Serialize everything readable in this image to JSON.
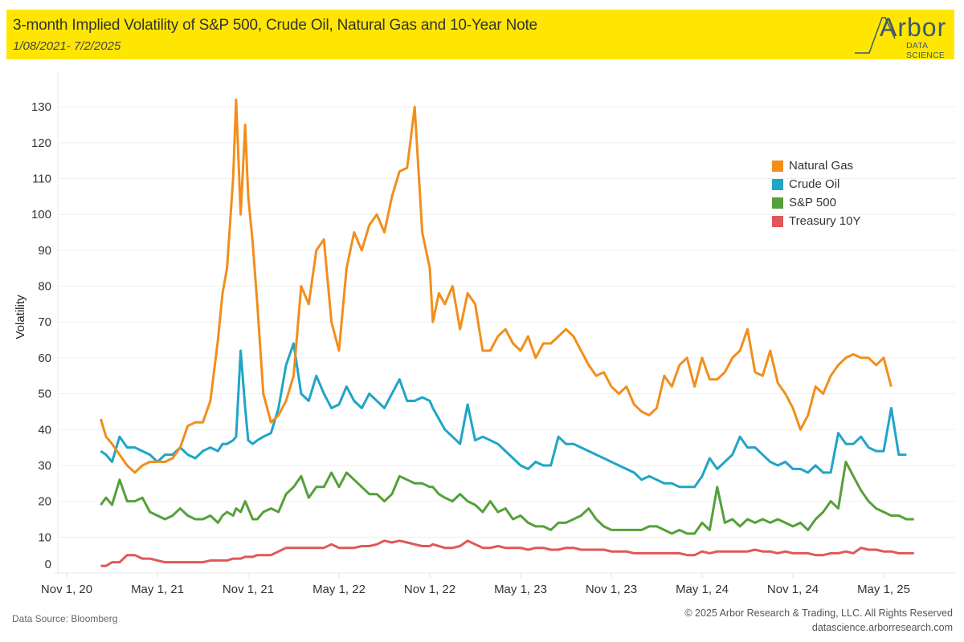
{
  "header": {
    "title": "3-month Implied Volatility of S&P 500, Crude Oil, Natural Gas and 10-Year Note",
    "subtitle": "1/08/2021- 7/2/2025",
    "logo_word": "Arbor",
    "logo_sub": "DATA SCIENCE"
  },
  "footer": {
    "source": "Data Source: Bloomberg",
    "copyright": "© 2025 Arbor Research & Trading, LLC. All Rights Reserved",
    "website": "datascience.arborresearch.com"
  },
  "chart_data": {
    "type": "line",
    "title": "3-month Implied Volatility of S&P 500, Crude Oil, Natural Gas and 10-Year Note",
    "subtitle": "1/08/2021- 7/2/2025",
    "xlabel": "",
    "ylabel": "Volatility",
    "ylim": [
      0,
      135
    ],
    "yticks": [
      0,
      10,
      20,
      30,
      40,
      50,
      60,
      70,
      80,
      90,
      100,
      110,
      120,
      130
    ],
    "xticks": [
      "Nov 1, 20",
      "May 1, 21",
      "Nov 1, 21",
      "May 1, 22",
      "Nov 1, 22",
      "May 1, 23",
      "Nov 1, 23",
      "May 1, 24",
      "Nov 1, 24",
      "May 1, 25"
    ],
    "x_unit": "months since Nov 1, 2020",
    "xlim": [
      -0.9,
      60.5
    ],
    "grid": "horizontal",
    "legend_position": "top-right",
    "colors": {
      "Natural Gas": "#f28e1c",
      "Crude Oil": "#1ea5c8",
      "S&P 500": "#55a03a",
      "Treasury 10Y": "#e05759"
    },
    "x": [
      2.25,
      2.6,
      3.0,
      3.5,
      4.0,
      4.5,
      5.0,
      5.5,
      6.0,
      6.5,
      7.0,
      7.5,
      8.0,
      8.5,
      9.0,
      9.5,
      10.0,
      10.3,
      10.6,
      11.0,
      11.2,
      11.5,
      11.8,
      12.0,
      12.3,
      12.6,
      13.0,
      13.5,
      14.0,
      14.5,
      15.0,
      15.5,
      16.0,
      16.5,
      17.0,
      17.5,
      18.0,
      18.5,
      19.0,
      19.5,
      20.0,
      20.5,
      21.0,
      21.5,
      22.0,
      22.5,
      23.0,
      23.5,
      24.0,
      24.2,
      24.6,
      25.0,
      25.5,
      26.0,
      26.5,
      27.0,
      27.5,
      28.0,
      28.5,
      29.0,
      29.5,
      30.0,
      30.5,
      31.0,
      31.5,
      32.0,
      32.5,
      33.0,
      33.5,
      34.0,
      34.5,
      35.0,
      35.5,
      36.0,
      36.5,
      37.0,
      37.5,
      38.0,
      38.5,
      39.0,
      39.5,
      40.0,
      40.5,
      41.0,
      41.5,
      42.0,
      42.5,
      43.0,
      43.5,
      44.0,
      44.5,
      45.0,
      45.5,
      46.0,
      46.5,
      47.0,
      47.5,
      48.0,
      48.5,
      49.0,
      49.5,
      50.0,
      50.5,
      51.0,
      51.5,
      52.0,
      52.5,
      53.0,
      53.5,
      54.0,
      54.5,
      55.0,
      55.5,
      56.0
    ],
    "series": [
      {
        "name": "Natural Gas",
        "values": [
          43,
          38,
          36,
          33,
          30,
          28,
          30,
          31,
          31,
          31,
          32,
          35,
          41,
          42,
          42,
          48,
          65,
          78,
          85,
          110,
          132,
          100,
          125,
          105,
          92,
          75,
          50,
          42,
          44,
          48,
          55,
          80,
          75,
          90,
          93,
          70,
          62,
          85,
          95,
          90,
          97,
          100,
          95,
          105,
          112,
          113,
          130,
          95,
          85,
          70,
          78,
          75,
          80,
          68,
          78,
          75,
          62,
          62,
          66,
          68,
          64,
          62,
          66,
          60,
          64,
          64,
          66,
          68,
          66,
          62,
          58,
          55,
          56,
          52,
          50,
          52,
          47,
          45,
          44,
          46,
          55,
          52,
          58,
          60,
          52,
          60,
          54,
          54,
          56,
          60,
          62,
          68,
          56,
          55,
          62,
          53,
          50,
          46,
          40,
          44,
          52,
          50,
          55,
          58,
          60,
          61,
          60,
          60,
          58,
          60,
          52
        ]
      },
      {
        "name": "Crude Oil",
        "values": [
          34,
          33,
          31,
          38,
          35,
          35,
          34,
          33,
          31,
          33,
          33,
          35,
          33,
          32,
          34,
          35,
          34,
          36,
          36,
          37,
          38,
          62,
          46,
          37,
          36,
          37,
          38,
          39,
          46,
          58,
          64,
          50,
          48,
          55,
          50,
          46,
          47,
          52,
          48,
          46,
          50,
          48,
          46,
          50,
          54,
          48,
          48,
          49,
          48,
          46,
          43,
          40,
          38,
          36,
          47,
          37,
          38,
          37,
          36,
          34,
          32,
          30,
          29,
          31,
          30,
          30,
          38,
          36,
          36,
          35,
          34,
          33,
          32,
          31,
          30,
          29,
          28,
          26,
          27,
          26,
          25,
          25,
          24,
          24,
          24,
          27,
          32,
          29,
          31,
          33,
          38,
          35,
          35,
          33,
          31,
          30,
          31,
          29,
          29,
          28,
          30,
          28,
          28,
          39,
          36,
          36,
          38,
          35,
          34,
          34,
          46,
          33,
          33
        ]
      },
      {
        "name": "S&P 500",
        "values": [
          19,
          21,
          19,
          26,
          20,
          20,
          21,
          17,
          16,
          15,
          16,
          18,
          16,
          15,
          15,
          16,
          14,
          16,
          17,
          16,
          18,
          17,
          20,
          18,
          15,
          15,
          17,
          18,
          17,
          22,
          24,
          27,
          21,
          24,
          24,
          28,
          24,
          28,
          26,
          24,
          22,
          22,
          20,
          22,
          27,
          26,
          25,
          25,
          24,
          24,
          22,
          21,
          20,
          22,
          20,
          19,
          17,
          20,
          17,
          18,
          15,
          16,
          14,
          13,
          13,
          12,
          14,
          14,
          15,
          16,
          18,
          15,
          13,
          12,
          12,
          12,
          12,
          12,
          13,
          13,
          12,
          11,
          12,
          11,
          11,
          14,
          12,
          24,
          14,
          15,
          13,
          15,
          14,
          15,
          14,
          15,
          14,
          13,
          14,
          12,
          15,
          17,
          20,
          18,
          31,
          27,
          23,
          20,
          18,
          17,
          16,
          16,
          15,
          15,
          16,
          15,
          15
        ]
      },
      {
        "name": "Treasury 10Y",
        "values": [
          2,
          2,
          3,
          3,
          5,
          5,
          4,
          4,
          3.5,
          3,
          3,
          3,
          3,
          3,
          3,
          3.5,
          3.5,
          3.5,
          3.5,
          4,
          4,
          4,
          4.5,
          4.5,
          4.5,
          5,
          5,
          5,
          6,
          7,
          7,
          7,
          7,
          7,
          7,
          8,
          7,
          7,
          7,
          7.5,
          7.5,
          8,
          9,
          8.5,
          9,
          8.5,
          8,
          7.5,
          7.5,
          8,
          7.5,
          7,
          7,
          7.5,
          9,
          8,
          7,
          7,
          7.5,
          7,
          7,
          7,
          6.5,
          7,
          7,
          6.5,
          6.5,
          7,
          7,
          6.5,
          6.5,
          6.5,
          6.5,
          6,
          6,
          6,
          5.5,
          5.5,
          5.5,
          5.5,
          5.5,
          5.5,
          5.5,
          5,
          5,
          6,
          5.5,
          6,
          6,
          6,
          6,
          6,
          6.5,
          6,
          6,
          5.5,
          6,
          5.5,
          5.5,
          5.5,
          5,
          5,
          5.5,
          5.5,
          6,
          5.5,
          7,
          6.5,
          6.5,
          6,
          6,
          5.5,
          5.5,
          5.5,
          5.5
        ]
      }
    ]
  }
}
